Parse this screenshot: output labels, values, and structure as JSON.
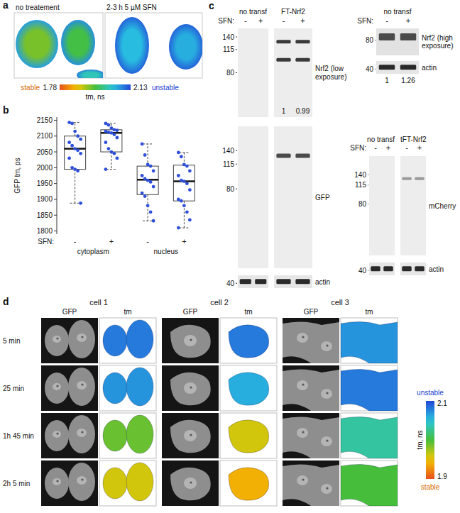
{
  "panel_letters": [
    "a",
    "b",
    "c",
    "d"
  ],
  "panel_a": {
    "images": [
      {
        "label": "no treatement",
        "cells": [
          {
            "center": 1.93,
            "edge": 2.07
          },
          {
            "center": 1.96,
            "edge": 2.08
          },
          {
            "center": 2.02,
            "edge": 2.09
          }
        ]
      },
      {
        "label": "2-3 h 5 µM SFN",
        "cells": [
          {
            "center": 2.05,
            "edge": 2.11
          },
          {
            "center": 2.06,
            "edge": 2.11
          }
        ]
      }
    ],
    "colorbar": {
      "low_label": "stable",
      "high_label": "unstable",
      "title": "tm, ns",
      "range": [
        1.78,
        2.13
      ]
    }
  },
  "chart_data": {
    "type": "box",
    "y_label": "GFP tm, ps",
    "x_label": "SFN:",
    "categories": [
      "-",
      "+",
      "-",
      "+"
    ],
    "group_labels": [
      "cytoplasm",
      "nucleus"
    ],
    "color": "#2e4fd8",
    "ylim": [
      1790,
      2160
    ],
    "yticks": [
      1800,
      1850,
      1900,
      1950,
      2000,
      2050,
      2100,
      2150
    ],
    "boxes": [
      {
        "min": 1888,
        "q1": 1995,
        "median": 2060,
        "q3": 2100,
        "max": 2143,
        "points": [
          2143,
          2140,
          2115,
          2100,
          2090,
          2080,
          2070,
          2060,
          2055,
          2045,
          2030,
          2000,
          1995,
          1990,
          1888
        ]
      },
      {
        "min": 1995,
        "q1": 2050,
        "median": 2110,
        "q3": 2120,
        "max": 2140,
        "points": [
          2140,
          2135,
          2125,
          2120,
          2118,
          2115,
          2112,
          2110,
          2105,
          2095,
          2080,
          2060,
          2050,
          2045,
          2030,
          1995
        ]
      },
      {
        "min": 1832,
        "q1": 1915,
        "median": 1962,
        "q3": 2005,
        "max": 2075,
        "points": [
          2075,
          2040,
          2010,
          2005,
          1990,
          1975,
          1965,
          1960,
          1955,
          1940,
          1920,
          1910,
          1880,
          1860,
          1832
        ]
      },
      {
        "min": 1810,
        "q1": 1895,
        "median": 1957,
        "q3": 2008,
        "max": 2048,
        "points": [
          2048,
          2035,
          2010,
          2005,
          1990,
          1975,
          1960,
          1957,
          1950,
          1930,
          1900,
          1895,
          1880,
          1860,
          1835,
          1810
        ]
      }
    ]
  },
  "panel_c": {
    "blots": [
      {
        "groups": [
          "no transf",
          "FT-Nrf2"
        ],
        "sfn_label": "SFN:",
        "lanes": [
          "-",
          "+",
          "-",
          "+"
        ],
        "strips": [
          {
            "label": "Nrf2 (low exposure)",
            "kda_range": [
              160,
              40
            ],
            "markers": [
              140,
              115,
              80
            ],
            "bands": [
              [],
              [],
              [
                130,
                98
              ],
              [
                130,
                98
              ]
            ],
            "quant": [
              null,
              null,
              1,
              0.99
            ]
          },
          {
            "label": "GFP",
            "kda_range": [
              200,
              25
            ],
            "markers": [
              140,
              115,
              80
            ],
            "bands": [
              [],
              [],
              [
                130
              ],
              [
                130
              ]
            ]
          },
          {
            "label": "actin",
            "kda_range": [
              50,
              35
            ],
            "markers": [
              40
            ],
            "bands": [
              [
                42
              ],
              [
                42
              ],
              [
                42
              ],
              [
                42
              ]
            ]
          }
        ]
      },
      {
        "groups": [
          "no transf"
        ],
        "sfn_label": "SFN:",
        "lanes": [
          "-",
          "+"
        ],
        "strips": [
          {
            "label": "Nrf2 (high exposure)",
            "kda_range": [
              100,
              60
            ],
            "markers": [
              80
            ],
            "bands": [
              [
                85
              ],
              [
                85
              ]
            ],
            "quant": [
              1,
              1.26
            ]
          },
          {
            "label": "actin",
            "kda_range": [
              50,
              35
            ],
            "markers": [
              40
            ],
            "bands": [
              [
                42
              ],
              [
                42
              ]
            ]
          }
        ]
      },
      {
        "groups": [
          "no transf",
          "tFT-Nrf2"
        ],
        "sfn_label": "SFN:",
        "lanes": [
          "-",
          "+",
          "-",
          "+"
        ],
        "strips": [
          {
            "label": "mCherry",
            "kda_range": [
              200,
              30
            ],
            "markers": [
              140,
              115,
              80
            ],
            "bands": [
              [],
              [],
              [
                130
              ],
              [
                130
              ]
            ]
          },
          {
            "label": "actin",
            "kda_range": [
              50,
              35
            ],
            "markers": [
              40
            ],
            "bands": [
              [
                42
              ],
              [
                42
              ],
              [
                42
              ],
              [
                42
              ]
            ]
          }
        ]
      }
    ]
  },
  "panel_d": {
    "cells": [
      {
        "label": "cell 1",
        "tm_ns": [
          2.08,
          2.07,
          1.99,
          1.96
        ]
      },
      {
        "label": "cell 2",
        "tm_ns": [
          2.08,
          2.06,
          1.96,
          1.94
        ]
      },
      {
        "label": "cell 3",
        "tm_ns": [
          2.07,
          2.08,
          2.03,
          2.0
        ]
      }
    ],
    "channels": [
      "GFP",
      "tm"
    ],
    "times": [
      "5 min",
      "25 min",
      "1h 45 min",
      "2h 5 min"
    ],
    "colorbar": {
      "high_label": "unstable",
      "low_label": "stable",
      "title": "tm, ns",
      "range": [
        1.9,
        2.1
      ]
    }
  }
}
